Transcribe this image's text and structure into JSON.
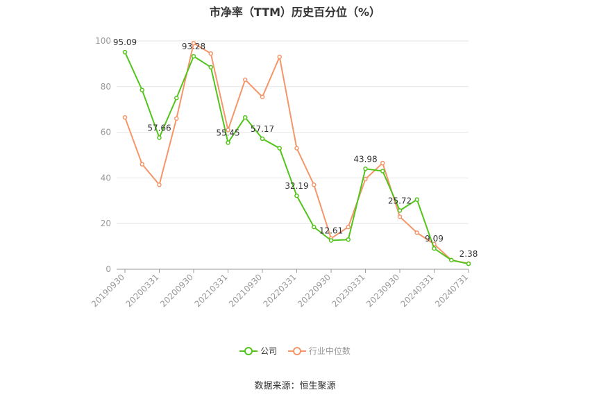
{
  "chart_data": {
    "type": "line",
    "title": "市净率（TTM）历史百分位（%）",
    "ylim": [
      0,
      100
    ],
    "yticks": [
      0,
      20,
      40,
      60,
      80,
      100
    ],
    "grid": true,
    "legend_position": "bottom",
    "x": [
      "20190930",
      "20191231",
      "20200331",
      "20200630",
      "20200930",
      "20201231",
      "20210331",
      "20210630",
      "20210930",
      "20211231",
      "20220331",
      "20220630",
      "20220930",
      "20221231",
      "20230331",
      "20230630",
      "20230930",
      "20231231",
      "20240331",
      "20240630",
      "20240731"
    ],
    "x_tick_labels": [
      "20190930",
      "20200331",
      "20200930",
      "20210331",
      "20210930",
      "20220331",
      "20220930",
      "20230331",
      "20230930",
      "20240331",
      "20240731"
    ],
    "series": [
      {
        "name": "公司",
        "color": "#52c41a",
        "values": [
          95.09,
          78.5,
          57.66,
          75.0,
          93.28,
          88.5,
          55.45,
          66.5,
          57.17,
          53.0,
          32.19,
          18.5,
          12.61,
          13.0,
          43.98,
          43.0,
          25.72,
          30.5,
          9.09,
          4.0,
          2.38
        ],
        "labels": {
          "0": "95.09",
          "2": "57.66",
          "4": "93.28",
          "6": "55.45",
          "8": "57.17",
          "10": "32.19",
          "12": "12.61",
          "14": "43.98",
          "16": "25.72",
          "18": "9.09",
          "20": "2.38"
        }
      },
      {
        "name": "行业中位数",
        "color": "#f4956a",
        "values": [
          66.5,
          46.0,
          37.0,
          66.0,
          99.0,
          94.5,
          61.0,
          83.0,
          75.5,
          93.0,
          53.0,
          37.0,
          13.5,
          18.5,
          39.5,
          46.5,
          23.0,
          16.0,
          11.0,
          4.0,
          2.5
        ]
      }
    ]
  },
  "source": "数据来源：恒生聚源"
}
